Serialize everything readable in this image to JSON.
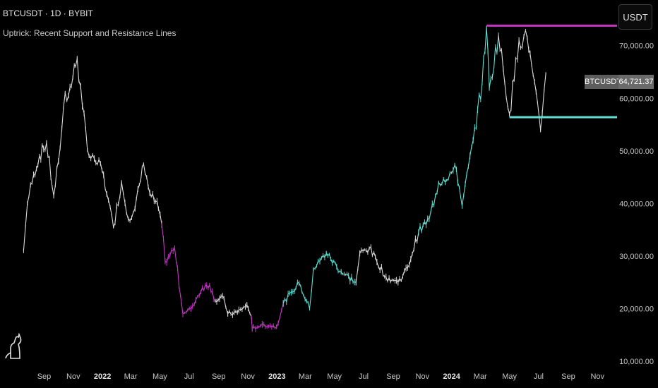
{
  "header": {
    "title": "BTCUSDT · 1D · BYBIT",
    "indicator": "Uptrick: Recent Support and Resistance Lines"
  },
  "currency": "USDT",
  "last_price": {
    "symbol": "BTCUSDT",
    "value": "64,721.37"
  },
  "colors": {
    "background": "#000000",
    "neutral": "#d9d9d9",
    "bull": "#5ee0d4",
    "bear": "#c236c2",
    "resistance": "#c236c2",
    "support": "#5ee0d4"
  },
  "chart_data": {
    "type": "line",
    "title": "BTCUSDT · 1D · BYBIT",
    "ylim": [
      10000,
      76000
    ],
    "y_ticks": [
      {
        "value": 10000,
        "label": "10,000.00"
      },
      {
        "value": 20000,
        "label": "20,000.00"
      },
      {
        "value": 30000,
        "label": "30,000.00"
      },
      {
        "value": 40000,
        "label": "40,000.00"
      },
      {
        "value": 50000,
        "label": "50,000.00"
      },
      {
        "value": 60000,
        "label": "60,000.00"
      },
      {
        "value": 70000,
        "label": "70,000.00"
      }
    ],
    "x_range": [
      "2021-07-15",
      "2024-12-12"
    ],
    "x_ticks": [
      {
        "date": "2021-09-01",
        "label": "Sep",
        "year": false
      },
      {
        "date": "2021-11-01",
        "label": "Nov",
        "year": false
      },
      {
        "date": "2022-01-01",
        "label": "2022",
        "year": true
      },
      {
        "date": "2022-03-01",
        "label": "Mar",
        "year": false
      },
      {
        "date": "2022-05-01",
        "label": "May",
        "year": false
      },
      {
        "date": "2022-07-01",
        "label": "Jul",
        "year": false
      },
      {
        "date": "2022-09-01",
        "label": "Sep",
        "year": false
      },
      {
        "date": "2022-11-01",
        "label": "Nov",
        "year": false
      },
      {
        "date": "2023-01-01",
        "label": "2023",
        "year": true
      },
      {
        "date": "2023-03-01",
        "label": "Mar",
        "year": false
      },
      {
        "date": "2023-05-01",
        "label": "May",
        "year": false
      },
      {
        "date": "2023-07-01",
        "label": "Jul",
        "year": false
      },
      {
        "date": "2023-09-01",
        "label": "Sep",
        "year": false
      },
      {
        "date": "2023-11-01",
        "label": "Nov",
        "year": false
      },
      {
        "date": "2024-01-01",
        "label": "2024",
        "year": true
      },
      {
        "date": "2024-03-01",
        "label": "Mar",
        "year": false
      },
      {
        "date": "2024-05-01",
        "label": "May",
        "year": false
      },
      {
        "date": "2024-07-01",
        "label": "Jul",
        "year": false
      },
      {
        "date": "2024-09-01",
        "label": "Sep",
        "year": false
      },
      {
        "date": "2024-11-01",
        "label": "Nov",
        "year": false
      }
    ],
    "series": [
      {
        "points": [
          [
            "2021-07-20",
            31000,
            "neutral"
          ],
          [
            "2021-07-28",
            40000,
            "neutral"
          ],
          [
            "2021-08-10",
            45500,
            "neutral"
          ],
          [
            "2021-08-22",
            49000,
            "neutral"
          ],
          [
            "2021-09-06",
            51500,
            "neutral"
          ],
          [
            "2021-09-21",
            41500,
            "neutral"
          ],
          [
            "2021-10-01",
            48000,
            "neutral"
          ],
          [
            "2021-10-15",
            61000,
            "neutral"
          ],
          [
            "2021-10-22",
            60500,
            "neutral"
          ],
          [
            "2021-11-09",
            67500,
            "neutral"
          ],
          [
            "2021-11-20",
            58500,
            "neutral"
          ],
          [
            "2021-12-04",
            49000,
            "neutral"
          ],
          [
            "2021-12-15",
            48500,
            "neutral"
          ],
          [
            "2021-12-31",
            46300,
            "neutral"
          ],
          [
            "2022-01-10",
            41800,
            "neutral"
          ],
          [
            "2022-01-24",
            35500,
            "neutral"
          ],
          [
            "2022-02-10",
            44000,
            "neutral"
          ],
          [
            "2022-02-24",
            37000,
            "neutral"
          ],
          [
            "2022-03-10",
            39000,
            "neutral"
          ],
          [
            "2022-03-28",
            47500,
            "neutral"
          ],
          [
            "2022-04-10",
            42000,
            "neutral"
          ],
          [
            "2022-04-28",
            39000,
            "neutral"
          ],
          [
            "2022-05-05",
            36000,
            "bear"
          ],
          [
            "2022-05-12",
            29000,
            "bear"
          ],
          [
            "2022-06-01",
            31500,
            "bear"
          ],
          [
            "2022-06-13",
            22500,
            "bear"
          ],
          [
            "2022-06-18",
            19000,
            "bear"
          ],
          [
            "2022-07-05",
            20000,
            "bear"
          ],
          [
            "2022-07-29",
            24000,
            "bear"
          ],
          [
            "2022-08-13",
            24500,
            "bear"
          ],
          [
            "2022-08-25",
            21500,
            "neutral"
          ],
          [
            "2022-09-12",
            22000,
            "neutral"
          ],
          [
            "2022-09-20",
            19000,
            "neutral"
          ],
          [
            "2022-10-10",
            19300,
            "neutral"
          ],
          [
            "2022-10-30",
            20700,
            "neutral"
          ],
          [
            "2022-11-08",
            18500,
            "bear"
          ],
          [
            "2022-11-10",
            16200,
            "bear"
          ],
          [
            "2022-12-01",
            17000,
            "bear"
          ],
          [
            "2022-12-31",
            16550,
            "bear"
          ],
          [
            "2023-01-14",
            21000,
            "bull"
          ],
          [
            "2023-01-31",
            23100,
            "bull"
          ],
          [
            "2023-02-16",
            24800,
            "bull"
          ],
          [
            "2023-03-10",
            20000,
            "bull"
          ],
          [
            "2023-03-18",
            27500,
            "bull"
          ],
          [
            "2023-04-14",
            30500,
            "bull"
          ],
          [
            "2023-05-15",
            27000,
            "bull"
          ],
          [
            "2023-06-15",
            25000,
            "neutral"
          ],
          [
            "2023-06-23",
            30500,
            "neutral"
          ],
          [
            "2023-07-13",
            31500,
            "neutral"
          ],
          [
            "2023-08-17",
            26000,
            "neutral"
          ],
          [
            "2023-09-11",
            25000,
            "neutral"
          ],
          [
            "2023-10-01",
            27800,
            "neutral"
          ],
          [
            "2023-10-24",
            34500,
            "bull"
          ],
          [
            "2023-11-15",
            37000,
            "bull"
          ],
          [
            "2023-12-05",
            44000,
            "bull"
          ],
          [
            "2024-01-11",
            46500,
            "bull"
          ],
          [
            "2024-01-23",
            39500,
            "bull"
          ],
          [
            "2024-02-15",
            52000,
            "bull"
          ],
          [
            "2024-03-05",
            63000,
            "bull"
          ],
          [
            "2024-03-14",
            73500,
            "bull"
          ],
          [
            "2024-03-20",
            62000,
            "bull"
          ],
          [
            "2024-04-08",
            72000,
            "neutral"
          ],
          [
            "2024-05-01",
            57000,
            "neutral"
          ],
          [
            "2024-05-21",
            71000,
            "neutral"
          ],
          [
            "2024-06-07",
            71500,
            "neutral"
          ],
          [
            "2024-07-05",
            54000,
            "neutral"
          ],
          [
            "2024-07-16",
            64700,
            "neutral"
          ]
        ]
      }
    ],
    "levels": [
      {
        "kind": "resistance",
        "value": 73800,
        "start": "2024-03-14",
        "color": "#c236c2"
      },
      {
        "kind": "support",
        "value": 56400,
        "start": "2024-05-01",
        "color": "#5ee0d4"
      }
    ]
  }
}
